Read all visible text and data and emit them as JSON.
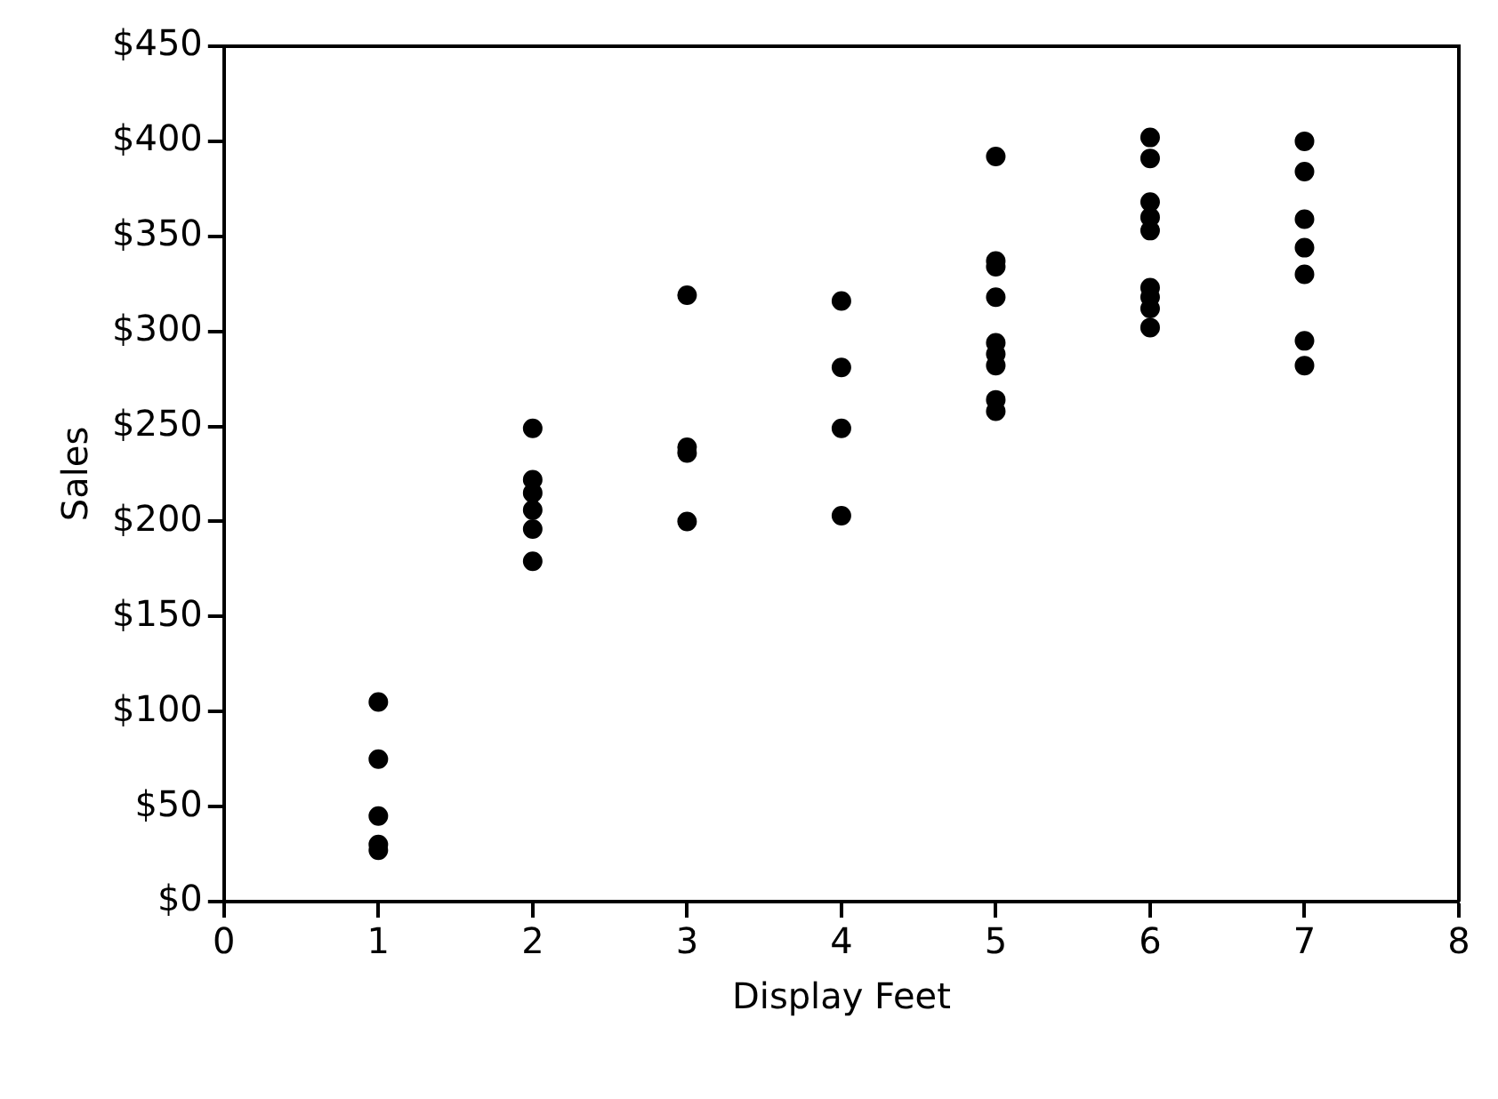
{
  "chart_data": {
    "type": "scatter",
    "xlabel": "Display Feet",
    "ylabel": "Sales",
    "x": [
      1,
      1,
      1,
      1,
      1,
      2,
      2,
      2,
      2,
      2,
      2,
      3,
      3,
      3,
      3,
      4,
      4,
      4,
      4,
      5,
      5,
      5,
      5,
      5,
      5,
      5,
      5,
      5,
      6,
      6,
      6,
      6,
      6,
      6,
      6,
      6,
      6,
      7,
      7,
      7,
      7,
      7,
      7,
      7
    ],
    "series": [
      {
        "color": "#000000",
        "values": [
          105,
          75,
          45,
          30,
          27,
          249,
          222,
          215,
          206,
          196,
          179,
          319,
          239,
          236,
          200,
          316,
          281,
          249,
          203,
          392,
          337,
          334,
          318,
          294,
          288,
          282,
          264,
          258,
          402,
          391,
          368,
          360,
          353,
          323,
          318,
          312,
          302,
          400,
          384,
          359,
          344,
          330,
          295,
          282
        ]
      }
    ],
    "xlim": [
      0,
      8
    ],
    "xticks": [
      0,
      1,
      2,
      3,
      4,
      5,
      6,
      7,
      8
    ],
    "ylim": [
      0,
      450
    ],
    "yticks": [
      {
        "value": 0,
        "label": "$0"
      },
      {
        "value": 50,
        "label": "$50"
      },
      {
        "value": 100,
        "label": "$100"
      },
      {
        "value": 150,
        "label": "$150"
      },
      {
        "value": 200,
        "label": "$200"
      },
      {
        "value": 250,
        "label": "$250"
      },
      {
        "value": 300,
        "label": "$300"
      },
      {
        "value": 350,
        "label": "$350"
      },
      {
        "value": 400,
        "label": "$400"
      },
      {
        "value": 450,
        "label": "$450"
      }
    ],
    "grid": false,
    "legend": false,
    "marker": "circle"
  }
}
